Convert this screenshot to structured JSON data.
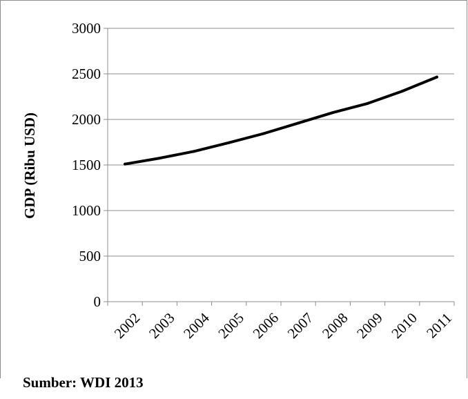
{
  "chart_data": {
    "type": "line",
    "title": "",
    "xlabel": "",
    "ylabel": "GDP (Ribu USD)",
    "ylim": [
      0,
      3000
    ],
    "yticks": [
      0,
      500,
      1000,
      1500,
      2000,
      2500,
      3000
    ],
    "grid": true,
    "legend": "none",
    "categories": [
      "2002",
      "2003",
      "2004",
      "2005",
      "2006",
      "2007",
      "2008",
      "2009",
      "2010",
      "2011"
    ],
    "series": [
      {
        "values": [
          1510,
          1575,
          1650,
          1745,
          1845,
          1960,
          2075,
          2175,
          2310,
          2465
        ],
        "color": "#000000"
      }
    ]
  },
  "source_note": "Sumber: WDI 2013"
}
